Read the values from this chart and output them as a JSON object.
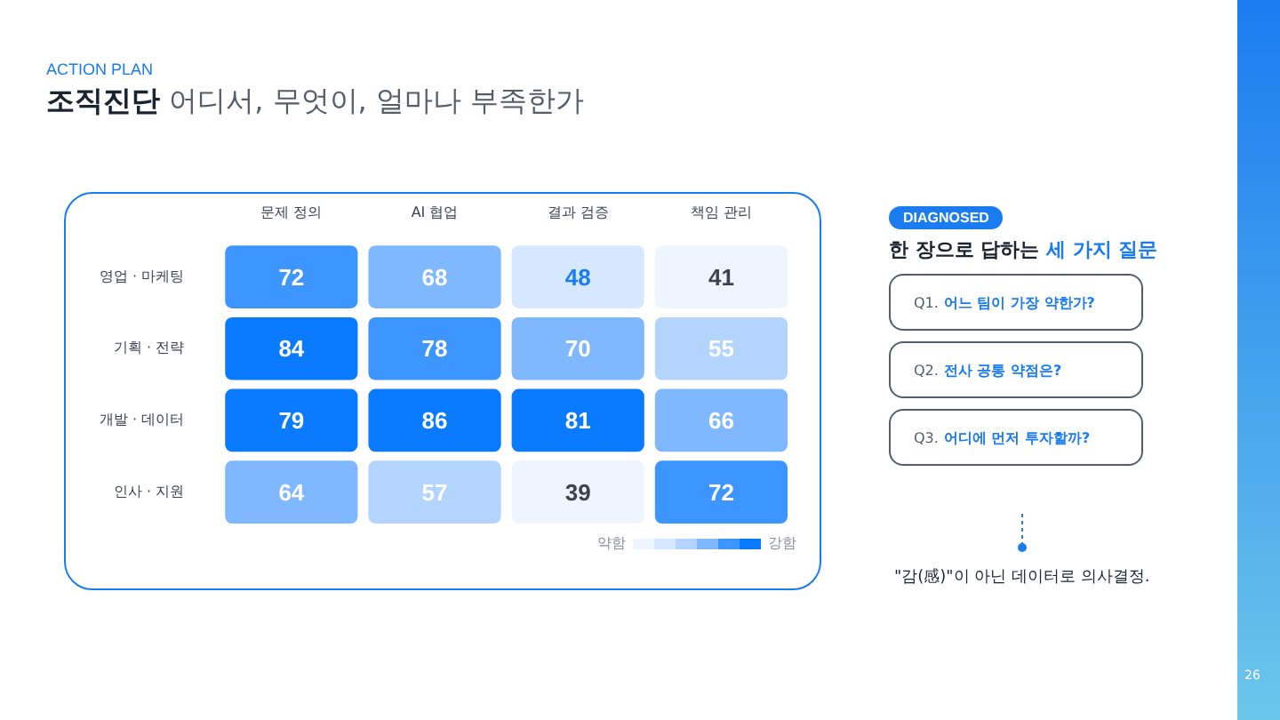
{
  "chart_data": {
    "type": "heatmap",
    "subtitle": "ACTION PLAN",
    "title": "조직진단 어디서, 무엇이, 얼마나 부족한가",
    "categories": [
      "문제 정의",
      "AI 협업",
      "결과 검증",
      "책임 관리"
    ],
    "y_categories": [
      "영업 · 마케팅",
      "기획 · 전략",
      "개발 · 데이터",
      "인사 · 지원"
    ],
    "cells": [
      [
        72,
        68,
        48,
        41
      ],
      [
        84,
        78,
        70,
        55
      ],
      [
        79,
        86,
        81,
        66
      ],
      [
        64,
        57,
        39,
        72
      ]
    ],
    "data_labels": true,
    "annotations": [
      "약함",
      "강함",
      "DIAGNOSED",
      "한 장으로 답하는 세 가지 질문",
      "Q1. 어느 팀이 가장 약한가?",
      "Q2. 전사 공통 약점은?",
      "Q3. 어디에 먼저 투자할까?",
      "\"감(感)\"이 아닌 데이터로 의사결정.",
      "26"
    ]
  }
}
